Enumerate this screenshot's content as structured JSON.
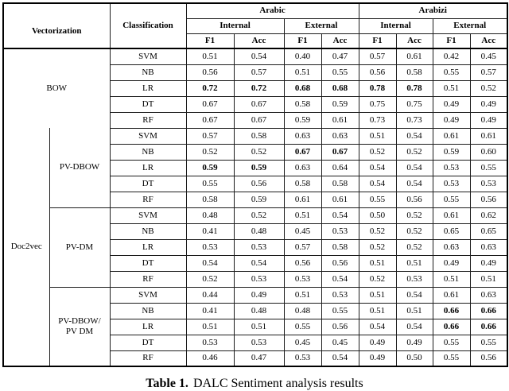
{
  "colors": {
    "background": "#ffffff",
    "text": "#000000",
    "inner_border": "#1c1c1c",
    "outer_border": "#000000"
  },
  "table": {
    "caption": {
      "label": "Table 1.",
      "text": "DALC Sentiment analysis results"
    },
    "header": {
      "vectorization": "Vectorization",
      "classification": "Classification",
      "groups": [
        {
          "label": "Arabic"
        },
        {
          "label": "Arabizi"
        }
      ],
      "subgroups": [
        "Internal",
        "External"
      ],
      "metrics": [
        "F1",
        "Acc"
      ]
    },
    "doc2vec_label": "Doc2vec",
    "sections": [
      {
        "vect": "BOW",
        "rows": [
          {
            "classifier": "SVM",
            "values": [
              "0.51",
              "0.54",
              "0.40",
              "0.47",
              "0.57",
              "0.61",
              "0.42",
              "0.45"
            ],
            "bold": []
          },
          {
            "classifier": "NB",
            "values": [
              "0.56",
              "0.57",
              "0.51",
              "0.55",
              "0.56",
              "0.58",
              "0.55",
              "0.57"
            ],
            "bold": []
          },
          {
            "classifier": "LR",
            "values": [
              "0.72",
              "0.72",
              "0.68",
              "0.68",
              "0.78",
              "0.78",
              "0.51",
              "0.52"
            ],
            "bold": [
              0,
              1,
              2,
              3,
              4,
              5
            ]
          },
          {
            "classifier": "DT",
            "values": [
              "0.67",
              "0.67",
              "0.58",
              "0.59",
              "0.75",
              "0.75",
              "0.49",
              "0.49"
            ],
            "bold": []
          },
          {
            "classifier": "RF",
            "values": [
              "0.67",
              "0.67",
              "0.59",
              "0.61",
              "0.73",
              "0.73",
              "0.49",
              "0.49"
            ],
            "bold": []
          }
        ]
      },
      {
        "vect": "PV-DBOW",
        "rows": [
          {
            "classifier": "SVM",
            "values": [
              "0.57",
              "0.58",
              "0.63",
              "0.63",
              "0.51",
              "0.54",
              "0.61",
              "0.61"
            ],
            "bold": []
          },
          {
            "classifier": "NB",
            "values": [
              "0.52",
              "0.52",
              "0.67",
              "0.67",
              "0.52",
              "0.52",
              "0.59",
              "0.60"
            ],
            "bold": [
              2,
              3
            ]
          },
          {
            "classifier": "LR",
            "values": [
              "0.59",
              "0.59",
              "0.63",
              "0.64",
              "0.54",
              "0.54",
              "0.53",
              "0.55"
            ],
            "bold": [
              0,
              1
            ]
          },
          {
            "classifier": "DT",
            "values": [
              "0.55",
              "0.56",
              "0.58",
              "0.58",
              "0.54",
              "0.54",
              "0.53",
              "0.53"
            ],
            "bold": []
          },
          {
            "classifier": "RF",
            "values": [
              "0.58",
              "0.59",
              "0.61",
              "0.61",
              "0.55",
              "0.56",
              "0.55",
              "0.56"
            ],
            "bold": []
          }
        ]
      },
      {
        "vect": "PV-DM",
        "rows": [
          {
            "classifier": "SVM",
            "values": [
              "0.48",
              "0.52",
              "0.51",
              "0.54",
              "0.50",
              "0.52",
              "0.61",
              "0.62"
            ],
            "bold": []
          },
          {
            "classifier": "NB",
            "values": [
              "0.41",
              "0.48",
              "0.45",
              "0.53",
              "0.52",
              "0.52",
              "0.65",
              "0.65"
            ],
            "bold": []
          },
          {
            "classifier": "LR",
            "values": [
              "0.53",
              "0.53",
              "0.57",
              "0.58",
              "0.52",
              "0.52",
              "0.63",
              "0.63"
            ],
            "bold": []
          },
          {
            "classifier": "DT",
            "values": [
              "0.54",
              "0.54",
              "0.56",
              "0.56",
              "0.51",
              "0.51",
              "0.49",
              "0.49"
            ],
            "bold": []
          },
          {
            "classifier": "RF",
            "values": [
              "0.52",
              "0.53",
              "0.53",
              "0.54",
              "0.52",
              "0.53",
              "0.51",
              "0.51"
            ],
            "bold": []
          }
        ]
      },
      {
        "vect": "PV-DBOW/\nPV DM",
        "rows": [
          {
            "classifier": "SVM",
            "values": [
              "0.44",
              "0.49",
              "0.51",
              "0.53",
              "0.51",
              "0.54",
              "0.61",
              "0.63"
            ],
            "bold": []
          },
          {
            "classifier": "NB",
            "values": [
              "0.41",
              "0.48",
              "0.48",
              "0.55",
              "0.51",
              "0.51",
              "0.66",
              "0.66"
            ],
            "bold": [
              6,
              7
            ]
          },
          {
            "classifier": "LR",
            "values": [
              "0.51",
              "0.51",
              "0.55",
              "0.56",
              "0.54",
              "0.54",
              "0.66",
              "0.66"
            ],
            "bold": [
              6,
              7
            ]
          },
          {
            "classifier": "DT",
            "values": [
              "0.53",
              "0.53",
              "0.45",
              "0.45",
              "0.49",
              "0.49",
              "0.55",
              "0.55"
            ],
            "bold": []
          },
          {
            "classifier": "RF",
            "values": [
              "0.46",
              "0.47",
              "0.53",
              "0.54",
              "0.49",
              "0.50",
              "0.55",
              "0.56"
            ],
            "bold": []
          }
        ]
      }
    ]
  }
}
